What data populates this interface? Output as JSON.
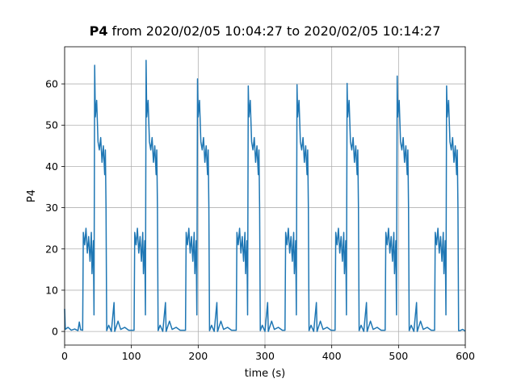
{
  "chart_data": {
    "type": "line",
    "title": [
      "P4",
      "from 2020/02/05 10:04:27 to 2020/02/05 10:14:27"
    ],
    "xlabel": "time (s)",
    "ylabel": "P4",
    "color": "#1f77b4",
    "grid": true,
    "xlim": [
      0,
      600
    ],
    "ylim": [
      -3.3,
      69
    ],
    "xticks": [
      0,
      100,
      200,
      300,
      400,
      500,
      600
    ],
    "yticks": [
      0,
      10,
      20,
      30,
      40,
      50,
      60
    ],
    "x": [
      0,
      1,
      5,
      10,
      15,
      20,
      22,
      24,
      27,
      28,
      30,
      32,
      34,
      36,
      38,
      40,
      41,
      43,
      44,
      45,
      46,
      48,
      50,
      52,
      54,
      56,
      58,
      60,
      61,
      62,
      63,
      66,
      70,
      74,
      75,
      80,
      84,
      90,
      96,
      104,
      105,
      107,
      109,
      111,
      113,
      115,
      117,
      118,
      120,
      121,
      122,
      123,
      125,
      127,
      129,
      131,
      133,
      135,
      137,
      138,
      139,
      140,
      143,
      147,
      151,
      152,
      157,
      161,
      167,
      173,
      181,
      182,
      184,
      186,
      188,
      190,
      192,
      194,
      195,
      197,
      198,
      199,
      200,
      202,
      204,
      206,
      208,
      210,
      212,
      214,
      215,
      216,
      217,
      220,
      224,
      228,
      229,
      234,
      238,
      244,
      250,
      257,
      258,
      260,
      262,
      264,
      266,
      268,
      270,
      271,
      273,
      274,
      275,
      276,
      278,
      280,
      282,
      284,
      286,
      288,
      290,
      291,
      292,
      293,
      296,
      300,
      304,
      305,
      310,
      314,
      320,
      326,
      330,
      331,
      333,
      335,
      337,
      339,
      341,
      343,
      344,
      346,
      347,
      348,
      349,
      351,
      353,
      355,
      357,
      359,
      361,
      363,
      364,
      365,
      366,
      369,
      373,
      377,
      378,
      383,
      387,
      393,
      399,
      405,
      406,
      408,
      410,
      412,
      414,
      416,
      418,
      419,
      421,
      422,
      423,
      424,
      426,
      428,
      430,
      432,
      434,
      436,
      438,
      439,
      440,
      441,
      444,
      448,
      452,
      453,
      458,
      462,
      468,
      474,
      480,
      481,
      483,
      485,
      487,
      489,
      491,
      493,
      494,
      496,
      497,
      498,
      499,
      501,
      503,
      505,
      507,
      509,
      511,
      513,
      514,
      515,
      516,
      519,
      523,
      527,
      528,
      533,
      537,
      543,
      549,
      554,
      555,
      557,
      559,
      561,
      563,
      565,
      567,
      568,
      570,
      571,
      572,
      573,
      575,
      577,
      579,
      581,
      583,
      585,
      587,
      588,
      589,
      590,
      592,
      596,
      600
    ],
    "values": [
      5.5,
      0.5,
      1,
      0.3,
      0.6,
      0.2,
      2.3,
      0.4,
      0.3,
      24,
      21,
      25,
      19,
      23,
      17,
      24,
      14,
      22,
      4,
      64.5,
      52,
      56,
      46,
      44,
      47,
      41,
      45,
      38,
      44,
      30,
      0.2,
      1.5,
      0,
      7,
      0,
      2.5,
      0.5,
      1,
      0.3,
      0.3,
      24,
      21,
      25,
      19,
      23,
      17,
      24,
      14,
      22,
      4,
      65.7,
      52,
      56,
      46,
      44,
      47,
      41,
      45,
      38,
      44,
      30,
      0.2,
      1.5,
      0,
      7,
      0,
      2.5,
      0.5,
      1,
      0.3,
      0.3,
      24,
      21,
      25,
      19,
      23,
      17,
      24,
      14,
      22,
      4,
      61.2,
      52,
      56,
      46,
      44,
      47,
      41,
      45,
      38,
      44,
      30,
      0.2,
      1.5,
      0,
      7,
      0,
      2.5,
      0.5,
      1,
      0.3,
      0.3,
      24,
      21,
      25,
      19,
      23,
      17,
      24,
      14,
      22,
      4,
      59.5,
      52,
      56,
      46,
      44,
      47,
      41,
      45,
      38,
      44,
      30,
      0.2,
      1.5,
      0,
      7,
      0,
      2.5,
      0.5,
      1,
      0.3,
      0.3,
      24,
      21,
      25,
      19,
      23,
      17,
      24,
      14,
      22,
      4,
      59.8,
      52,
      56,
      46,
      44,
      47,
      41,
      45,
      38,
      44,
      30,
      0.2,
      1.5,
      0,
      7,
      0,
      2.5,
      0.5,
      1,
      0.3,
      0.3,
      24,
      21,
      25,
      19,
      23,
      17,
      24,
      14,
      22,
      4,
      60.1,
      52,
      56,
      46,
      44,
      47,
      41,
      45,
      38,
      44,
      30,
      0.2,
      1.5,
      0,
      7,
      0,
      2.5,
      0.5,
      1,
      0.3,
      0.3,
      24,
      21,
      25,
      19,
      23,
      17,
      24,
      14,
      22,
      4,
      61.9,
      52,
      56,
      46,
      44,
      47,
      41,
      45,
      38,
      44,
      30,
      0.2,
      1.5,
      0,
      7,
      0,
      2.5,
      0.5,
      1,
      0.3,
      0.3,
      24,
      21,
      25,
      19,
      23,
      17,
      24,
      14,
      22,
      4,
      59.5,
      52,
      56,
      46,
      44,
      47,
      41,
      45,
      38,
      44,
      30,
      0.2,
      0.2,
      0.5,
      0.1
    ]
  }
}
